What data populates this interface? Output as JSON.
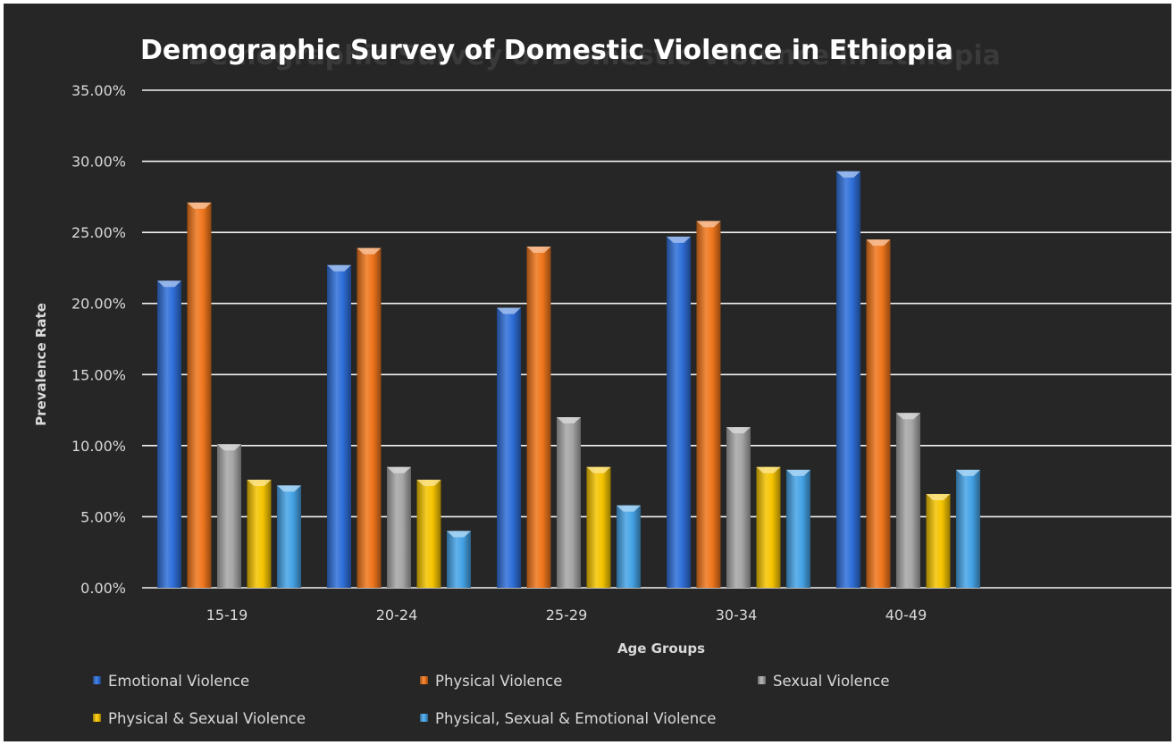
{
  "chart_data": {
    "type": "bar",
    "title": "Demographic Survey of Domestic Violence in Ethiopia",
    "xlabel": "Age Groups",
    "ylabel": "Prevalence Rate",
    "categories": [
      "15-19",
      "20-24",
      "25-29",
      "30-34",
      "40-49"
    ],
    "ylim": [
      0,
      35
    ],
    "yticks": [
      "0.00%",
      "5.00%",
      "10.00%",
      "15.00%",
      "20.00%",
      "25.00%",
      "30.00%",
      "35.00%"
    ],
    "grid": true,
    "legend_position": "bottom",
    "series": [
      {
        "name": "Emotional Violence",
        "color": "#2f6fd9",
        "values": [
          21.6,
          22.7,
          19.7,
          24.7,
          29.3
        ]
      },
      {
        "name": "Physical Violence",
        "color": "#f0761c",
        "values": [
          27.1,
          23.9,
          24.0,
          25.8,
          24.5
        ]
      },
      {
        "name": "Sexual Violence",
        "color": "#a6a6a6",
        "values": [
          10.1,
          8.5,
          12.0,
          11.3,
          12.3
        ]
      },
      {
        "name": "Physical & Sexual Violence",
        "color": "#f5c400",
        "values": [
          7.6,
          7.6,
          8.5,
          8.5,
          6.6
        ]
      },
      {
        "name": "Physical, Sexual & Emotional Violence",
        "color": "#45a3e6",
        "values": [
          7.2,
          4.0,
          5.8,
          8.3,
          8.3
        ]
      }
    ]
  }
}
